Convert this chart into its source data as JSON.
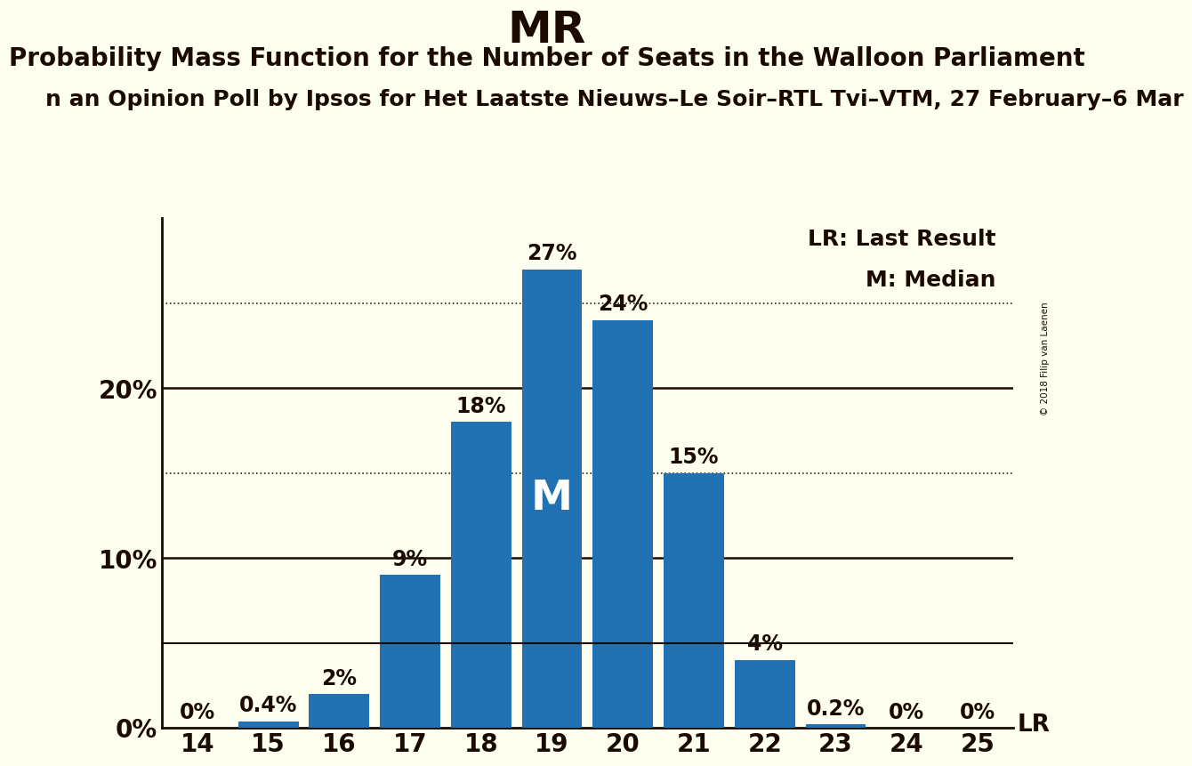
{
  "title": "MR",
  "subtitle1": "Probability Mass Function for the Number of Seats in the Walloon Parliament",
  "subtitle2": "n an Opinion Poll by Ipsos for Het Laatste Nieuws–Le Soir–RTL Tvi–VTM, 27 February–6 Mar",
  "copyright": "© 2018 Filip van Laenen",
  "categories": [
    14,
    15,
    16,
    17,
    18,
    19,
    20,
    21,
    22,
    23,
    24,
    25
  ],
  "values": [
    0.0,
    0.4,
    2.0,
    9.0,
    18.0,
    27.0,
    24.0,
    15.0,
    4.0,
    0.2,
    0.0,
    0.0
  ],
  "labels": [
    "0%",
    "0.4%",
    "2%",
    "9%",
    "18%",
    "27%",
    "24%",
    "15%",
    "4%",
    "0.2%",
    "0%",
    "0%"
  ],
  "bar_color": "#2271b3",
  "background_color": "#fffff0",
  "median_index": 5,
  "median_label": "M",
  "lr_value": 5.0,
  "lr_label": "LR",
  "legend_lr": "LR: Last Result",
  "legend_m": "M: Median",
  "ylabel_ticks": [
    0,
    10,
    20
  ],
  "solid_lines": [
    10,
    20
  ],
  "dotted_lines": [
    5,
    15,
    25
  ],
  "ylim": [
    0,
    30
  ],
  "title_fontsize": 36,
  "subtitle1_fontsize": 20,
  "subtitle2_fontsize": 18,
  "label_fontsize": 17,
  "tick_fontsize": 20,
  "axis_color": "#1a0a00",
  "text_color": "#1a0a00"
}
